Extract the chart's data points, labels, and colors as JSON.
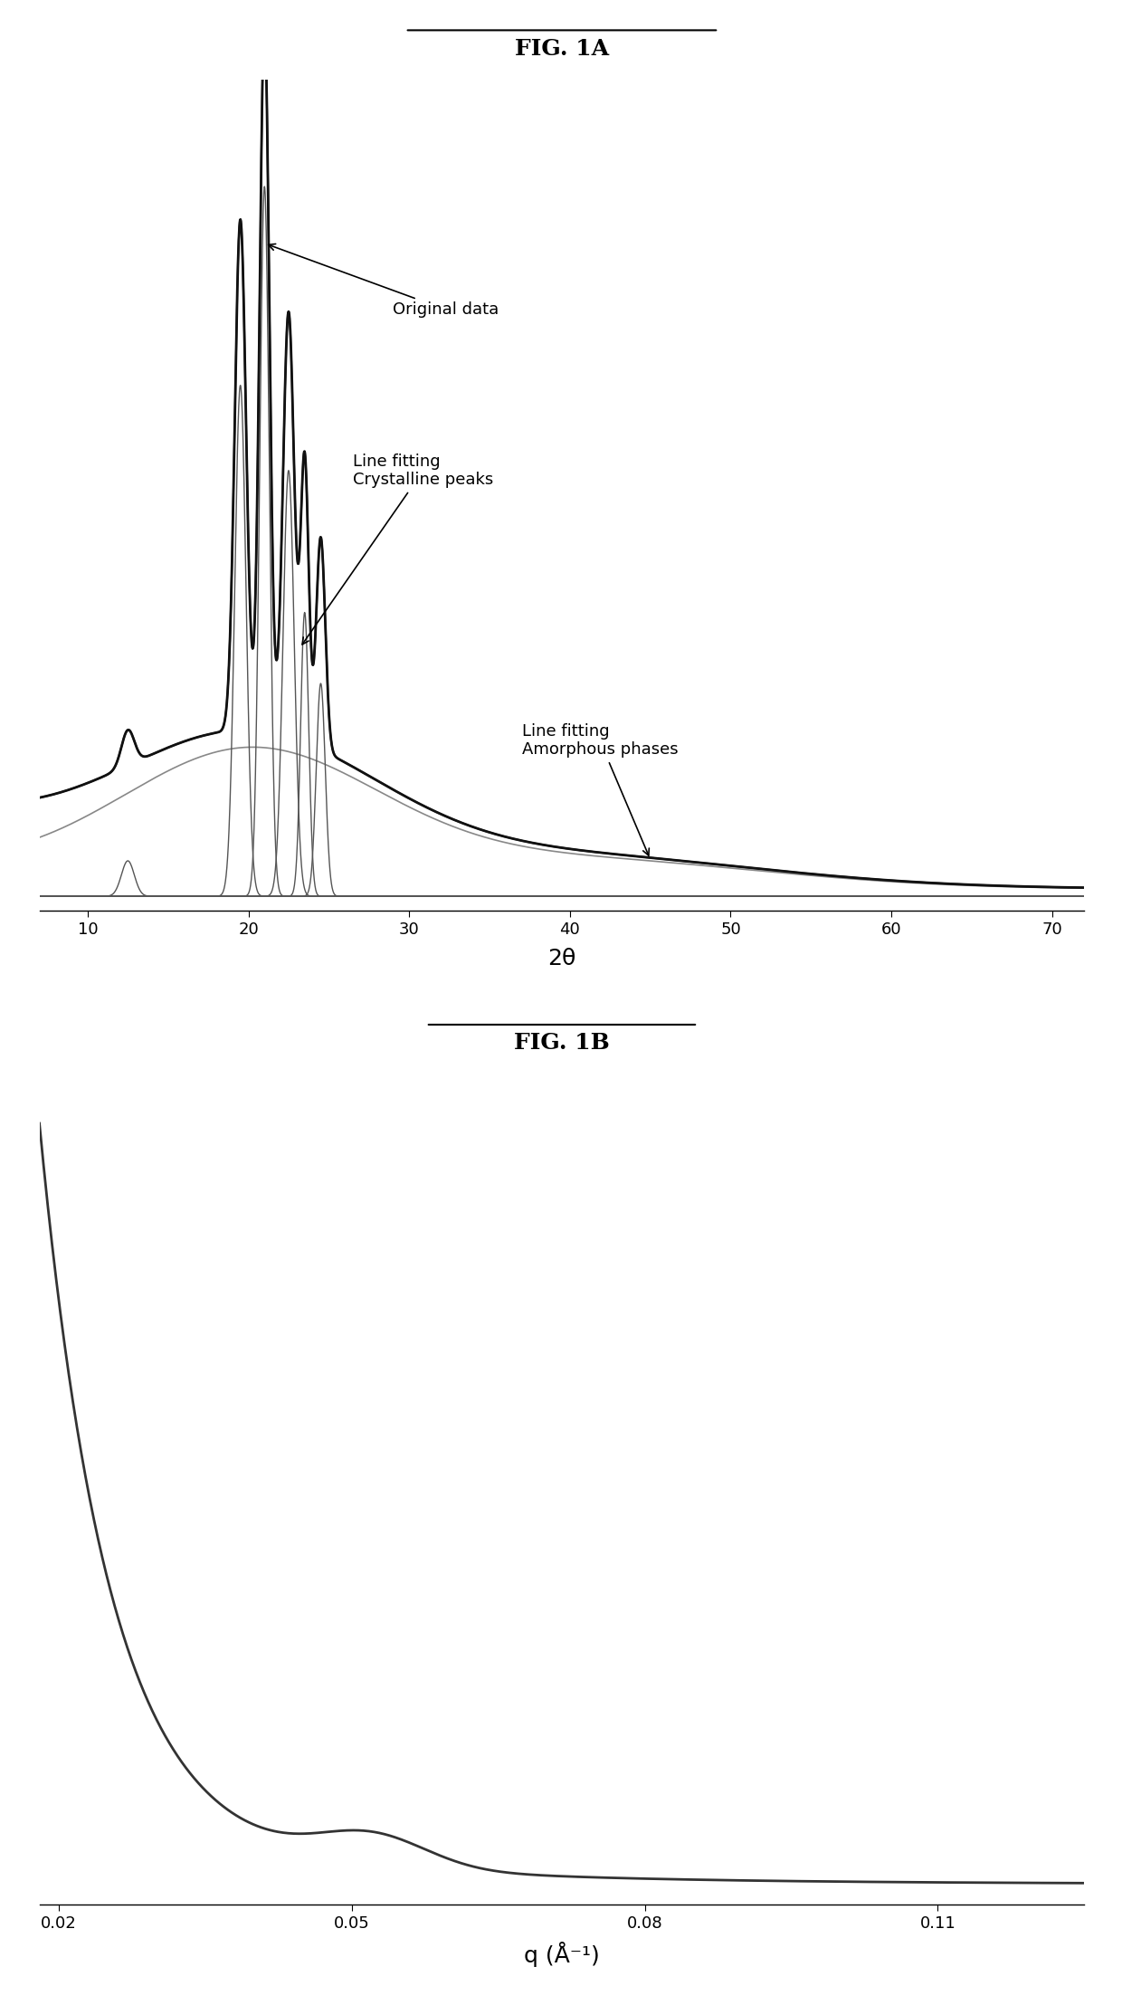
{
  "fig1a_title": "FIG. 1A",
  "fig1b_title": "FIG. 1B",
  "fig1a_xlabel": "2θ",
  "fig1b_xlabel": "q (Å⁻¹)",
  "fig1a_xlim": [
    7,
    72
  ],
  "fig1a_xticks": [
    10,
    20,
    30,
    40,
    50,
    60,
    70
  ],
  "fig1b_xlim": [
    0.018,
    0.125
  ],
  "fig1b_xticks": [
    0.02,
    0.05,
    0.08,
    0.11
  ],
  "fig1b_xticklabels": [
    "0.02",
    "0.05",
    "0.08",
    "0.11"
  ],
  "background_color": "#ffffff",
  "line_color": "#333333",
  "annotation_fontsize": 13,
  "title_fontsize": 18,
  "axis_label_fontsize": 16,
  "tick_fontsize": 13
}
